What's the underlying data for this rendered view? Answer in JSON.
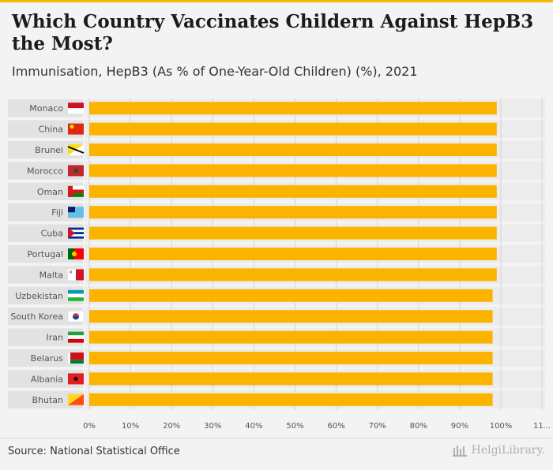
{
  "title": "Which Country Vaccinates Childern Against HepB3 the Most?",
  "subtitle": "Immunisation, HepB3 (As % of One-Year-Old Children) (%), 2021",
  "source": "Source: National Statistical Office",
  "brand": "HelgiLibrary.",
  "colors": {
    "bar": "#fbb300",
    "row_band": "#e2e2e2",
    "accent": "#f5b800"
  },
  "chart_data": {
    "type": "bar",
    "orientation": "horizontal",
    "categories": [
      "Monaco",
      "China",
      "Brunei",
      "Morocco",
      "Oman",
      "Fiji",
      "Cuba",
      "Portugal",
      "Malta",
      "Uzbekistan",
      "South Korea",
      "Iran",
      "Belarus",
      "Albania",
      "Bhutan"
    ],
    "values": [
      99,
      99,
      99,
      99,
      99,
      99,
      99,
      99,
      99,
      98,
      98,
      98,
      98,
      98,
      98
    ],
    "xlim": [
      0,
      110
    ],
    "x_ticks": [
      "0%",
      "10%",
      "20%",
      "30%",
      "40%",
      "50%",
      "60%",
      "70%",
      "80%",
      "90%",
      "100%",
      "11..."
    ],
    "grid": true,
    "legend": "none"
  }
}
